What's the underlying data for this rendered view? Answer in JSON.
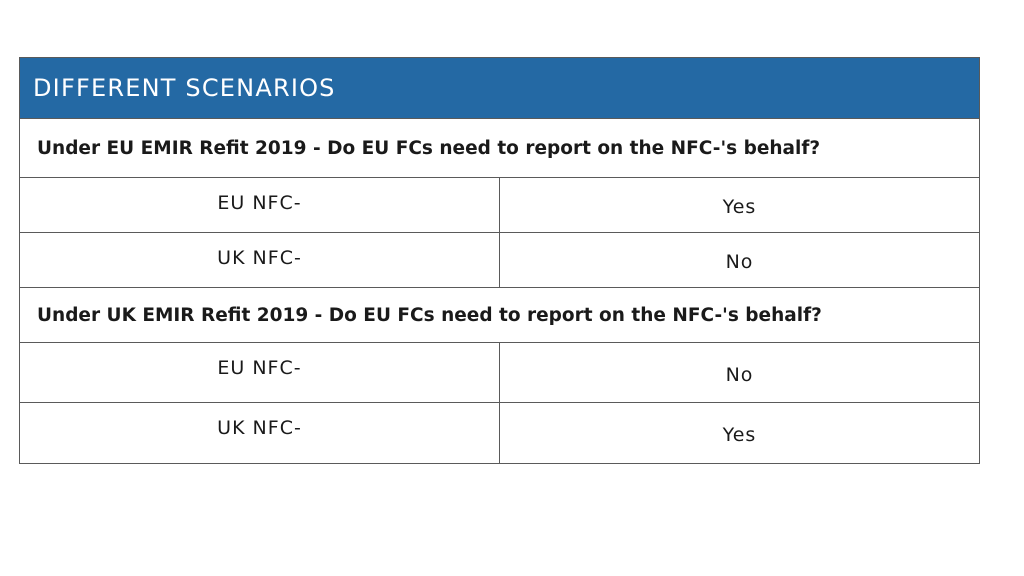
{
  "header": {
    "title": "DIFFERENT SCENARIOS"
  },
  "sections": [
    {
      "question": "Under EU EMIR Refit 2019 - Do EU FCs need to report on the NFC-'s behalf?",
      "rows": [
        {
          "entity": "EU NFC-",
          "answer": "Yes"
        },
        {
          "entity": "UK NFC-",
          "answer": "No"
        }
      ]
    },
    {
      "question": "Under UK EMIR Refit 2019 - Do EU FCs need to report on the NFC-'s behalf?",
      "rows": [
        {
          "entity": "EU NFC-",
          "answer": "No"
        },
        {
          "entity": "UK NFC-",
          "answer": "Yes"
        }
      ]
    }
  ]
}
